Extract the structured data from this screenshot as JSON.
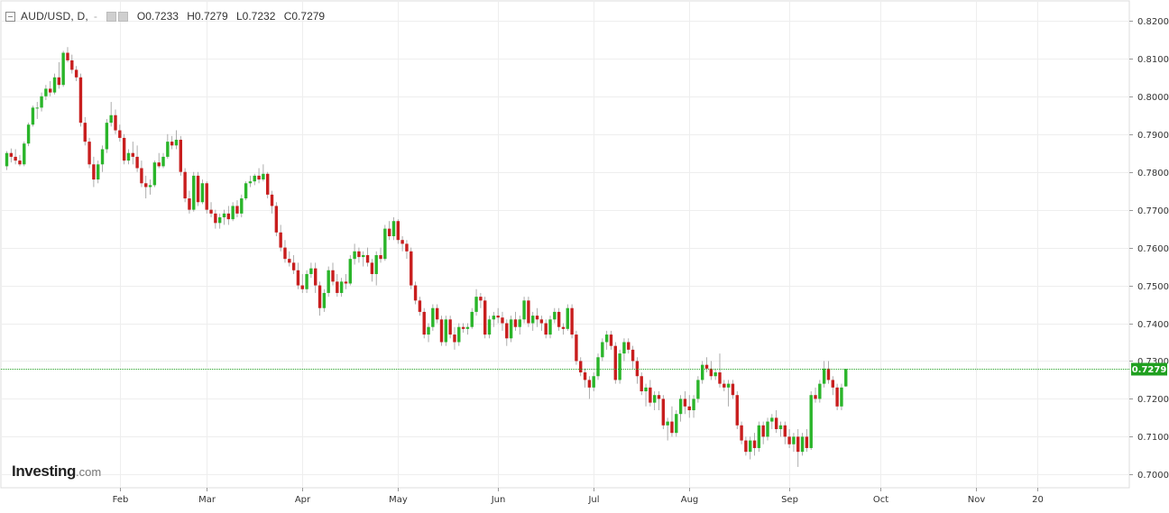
{
  "header": {
    "symbol": "AUD/USD, D,",
    "dash": "-",
    "open": "O0.7233",
    "high": "H0.7279",
    "low": "L0.7232",
    "close": "C0.7279"
  },
  "logo": {
    "main": "Investing",
    "suffix": ".com"
  },
  "colors": {
    "up": "#2ab52a",
    "down": "#c81e1e",
    "wick": "#999999",
    "grid": "#eeeeee",
    "current": "#20a020"
  },
  "chart_data": {
    "type": "candlestick",
    "ylim": [
      0.6965,
      0.8245
    ],
    "y_ticks": [
      "0.8200",
      "0.8100",
      "0.8000",
      "0.7900",
      "0.7800",
      "0.7700",
      "0.7600",
      "0.7500",
      "0.7400",
      "0.7300",
      "0.7200",
      "0.7100",
      "0.7000"
    ],
    "x_ticks": [
      {
        "label": "Feb",
        "day": 26
      },
      {
        "label": "Mar",
        "day": 46
      },
      {
        "label": "Apr",
        "day": 68
      },
      {
        "label": "May",
        "day": 90
      },
      {
        "label": "Jun",
        "day": 113
      },
      {
        "label": "Jul",
        "day": 135
      },
      {
        "label": "Aug",
        "day": 157
      },
      {
        "label": "Sep",
        "day": 180
      },
      {
        "label": "Oct",
        "day": 201
      },
      {
        "label": "Nov",
        "day": 223
      },
      {
        "label": "20",
        "day": 237
      }
    ],
    "current_price": "0.7279",
    "grid": true,
    "candles": [
      [
        0.7815,
        0.7855,
        0.7805,
        0.785
      ],
      [
        0.785,
        0.7862,
        0.7825,
        0.784
      ],
      [
        0.784,
        0.786,
        0.782,
        0.783
      ],
      [
        0.783,
        0.7845,
        0.7815,
        0.782
      ],
      [
        0.782,
        0.788,
        0.7815,
        0.7875
      ],
      [
        0.7875,
        0.793,
        0.7868,
        0.7925
      ],
      [
        0.7925,
        0.7975,
        0.792,
        0.797
      ],
      [
        0.797,
        0.7985,
        0.794,
        0.797
      ],
      [
        0.797,
        0.801,
        0.796,
        0.8
      ],
      [
        0.8,
        0.803,
        0.799,
        0.802
      ],
      [
        0.802,
        0.804,
        0.8,
        0.801
      ],
      [
        0.801,
        0.806,
        0.8005,
        0.805
      ],
      [
        0.805,
        0.809,
        0.802,
        0.803
      ],
      [
        0.803,
        0.812,
        0.8025,
        0.8115
      ],
      [
        0.8115,
        0.813,
        0.809,
        0.8095
      ],
      [
        0.8095,
        0.811,
        0.806,
        0.807
      ],
      [
        0.807,
        0.808,
        0.804,
        0.805
      ],
      [
        0.805,
        0.806,
        0.792,
        0.793
      ],
      [
        0.793,
        0.7945,
        0.787,
        0.788
      ],
      [
        0.788,
        0.789,
        0.781,
        0.782
      ],
      [
        0.782,
        0.784,
        0.776,
        0.778
      ],
      [
        0.778,
        0.783,
        0.777,
        0.782
      ],
      [
        0.782,
        0.787,
        0.78,
        0.786
      ],
      [
        0.786,
        0.794,
        0.785,
        0.793
      ],
      [
        0.793,
        0.7985,
        0.792,
        0.795
      ],
      [
        0.795,
        0.7965,
        0.79,
        0.791
      ],
      [
        0.791,
        0.7925,
        0.788,
        0.789
      ],
      [
        0.789,
        0.79,
        0.782,
        0.783
      ],
      [
        0.783,
        0.786,
        0.782,
        0.785
      ],
      [
        0.785,
        0.788,
        0.782,
        0.784
      ],
      [
        0.784,
        0.787,
        0.78,
        0.781
      ],
      [
        0.781,
        0.783,
        0.776,
        0.777
      ],
      [
        0.777,
        0.779,
        0.773,
        0.776
      ],
      [
        0.776,
        0.778,
        0.774,
        0.7765
      ],
      [
        0.7765,
        0.783,
        0.776,
        0.7825
      ],
      [
        0.7825,
        0.785,
        0.781,
        0.7815
      ],
      [
        0.7815,
        0.785,
        0.781,
        0.784
      ],
      [
        0.784,
        0.79,
        0.7835,
        0.788
      ],
      [
        0.788,
        0.7895,
        0.786,
        0.787
      ],
      [
        0.787,
        0.791,
        0.786,
        0.7885
      ],
      [
        0.7885,
        0.7895,
        0.779,
        0.78
      ],
      [
        0.78,
        0.781,
        0.772,
        0.773
      ],
      [
        0.773,
        0.775,
        0.769,
        0.77
      ],
      [
        0.77,
        0.78,
        0.7695,
        0.779
      ],
      [
        0.779,
        0.78,
        0.771,
        0.772
      ],
      [
        0.772,
        0.778,
        0.7715,
        0.777
      ],
      [
        0.777,
        0.7775,
        0.769,
        0.77
      ],
      [
        0.77,
        0.772,
        0.768,
        0.769
      ],
      [
        0.769,
        0.77,
        0.765,
        0.7665
      ],
      [
        0.7665,
        0.769,
        0.765,
        0.768
      ],
      [
        0.768,
        0.77,
        0.766,
        0.769
      ],
      [
        0.769,
        0.771,
        0.766,
        0.7675
      ],
      [
        0.7675,
        0.772,
        0.767,
        0.771
      ],
      [
        0.771,
        0.7725,
        0.768,
        0.769
      ],
      [
        0.769,
        0.774,
        0.768,
        0.773
      ],
      [
        0.773,
        0.7775,
        0.7725,
        0.777
      ],
      [
        0.777,
        0.779,
        0.776,
        0.7775
      ],
      [
        0.7775,
        0.7795,
        0.7765,
        0.779
      ],
      [
        0.779,
        0.781,
        0.777,
        0.778
      ],
      [
        0.778,
        0.782,
        0.7775,
        0.7795
      ],
      [
        0.7795,
        0.78,
        0.773,
        0.774
      ],
      [
        0.774,
        0.775,
        0.769,
        0.771
      ],
      [
        0.771,
        0.772,
        0.763,
        0.764
      ],
      [
        0.764,
        0.766,
        0.759,
        0.76
      ],
      [
        0.76,
        0.762,
        0.756,
        0.757
      ],
      [
        0.757,
        0.759,
        0.755,
        0.756
      ],
      [
        0.756,
        0.758,
        0.753,
        0.754
      ],
      [
        0.754,
        0.756,
        0.749,
        0.75
      ],
      [
        0.75,
        0.753,
        0.748,
        0.749
      ],
      [
        0.749,
        0.754,
        0.748,
        0.753
      ],
      [
        0.753,
        0.756,
        0.752,
        0.7545
      ],
      [
        0.7545,
        0.756,
        0.748,
        0.75
      ],
      [
        0.75,
        0.751,
        0.742,
        0.744
      ],
      [
        0.744,
        0.749,
        0.743,
        0.748
      ],
      [
        0.748,
        0.755,
        0.747,
        0.754
      ],
      [
        0.754,
        0.756,
        0.75,
        0.751
      ],
      [
        0.751,
        0.753,
        0.747,
        0.748
      ],
      [
        0.748,
        0.752,
        0.747,
        0.751
      ],
      [
        0.751,
        0.753,
        0.749,
        0.7505
      ],
      [
        0.7505,
        0.758,
        0.75,
        0.757
      ],
      [
        0.757,
        0.761,
        0.7555,
        0.759
      ],
      [
        0.759,
        0.76,
        0.756,
        0.7575
      ],
      [
        0.7575,
        0.759,
        0.755,
        0.758
      ],
      [
        0.758,
        0.76,
        0.755,
        0.756
      ],
      [
        0.756,
        0.757,
        0.751,
        0.753
      ],
      [
        0.753,
        0.759,
        0.75,
        0.758
      ],
      [
        0.758,
        0.76,
        0.756,
        0.757
      ],
      [
        0.757,
        0.766,
        0.7565,
        0.765
      ],
      [
        0.765,
        0.767,
        0.762,
        0.763
      ],
      [
        0.763,
        0.768,
        0.762,
        0.767
      ],
      [
        0.767,
        0.7675,
        0.761,
        0.762
      ],
      [
        0.762,
        0.763,
        0.759,
        0.761
      ],
      [
        0.761,
        0.762,
        0.757,
        0.759
      ],
      [
        0.759,
        0.76,
        0.749,
        0.75
      ],
      [
        0.75,
        0.751,
        0.745,
        0.746
      ],
      [
        0.746,
        0.747,
        0.742,
        0.743
      ],
      [
        0.743,
        0.744,
        0.736,
        0.737
      ],
      [
        0.737,
        0.74,
        0.735,
        0.739
      ],
      [
        0.739,
        0.745,
        0.738,
        0.744
      ],
      [
        0.744,
        0.745,
        0.74,
        0.741
      ],
      [
        0.741,
        0.742,
        0.734,
        0.735
      ],
      [
        0.735,
        0.742,
        0.734,
        0.741
      ],
      [
        0.741,
        0.742,
        0.736,
        0.737
      ],
      [
        0.737,
        0.739,
        0.733,
        0.735
      ],
      [
        0.735,
        0.74,
        0.734,
        0.739
      ],
      [
        0.739,
        0.74,
        0.7375,
        0.7385
      ],
      [
        0.7385,
        0.74,
        0.737,
        0.739
      ],
      [
        0.739,
        0.744,
        0.7385,
        0.743
      ],
      [
        0.743,
        0.749,
        0.742,
        0.747
      ],
      [
        0.747,
        0.748,
        0.744,
        0.746
      ],
      [
        0.746,
        0.747,
        0.736,
        0.737
      ],
      [
        0.737,
        0.742,
        0.736,
        0.741
      ],
      [
        0.741,
        0.743,
        0.739,
        0.742
      ],
      [
        0.742,
        0.744,
        0.74,
        0.7415
      ],
      [
        0.7415,
        0.743,
        0.738,
        0.74
      ],
      [
        0.74,
        0.741,
        0.734,
        0.736
      ],
      [
        0.736,
        0.742,
        0.735,
        0.741
      ],
      [
        0.741,
        0.743,
        0.738,
        0.739
      ],
      [
        0.739,
        0.742,
        0.737,
        0.741
      ],
      [
        0.741,
        0.747,
        0.74,
        0.746
      ],
      [
        0.746,
        0.747,
        0.739,
        0.74
      ],
      [
        0.74,
        0.743,
        0.738,
        0.742
      ],
      [
        0.742,
        0.744,
        0.739,
        0.741
      ],
      [
        0.741,
        0.742,
        0.738,
        0.74
      ],
      [
        0.74,
        0.741,
        0.736,
        0.737
      ],
      [
        0.737,
        0.742,
        0.736,
        0.741
      ],
      [
        0.741,
        0.744,
        0.74,
        0.743
      ],
      [
        0.743,
        0.744,
        0.738,
        0.739
      ],
      [
        0.739,
        0.74,
        0.737,
        0.7385
      ],
      [
        0.7385,
        0.745,
        0.738,
        0.744
      ],
      [
        0.744,
        0.745,
        0.736,
        0.737
      ],
      [
        0.737,
        0.738,
        0.729,
        0.73
      ],
      [
        0.73,
        0.731,
        0.726,
        0.727
      ],
      [
        0.727,
        0.728,
        0.723,
        0.725
      ],
      [
        0.725,
        0.726,
        0.72,
        0.723
      ],
      [
        0.723,
        0.727,
        0.722,
        0.726
      ],
      [
        0.726,
        0.732,
        0.725,
        0.731
      ],
      [
        0.731,
        0.736,
        0.73,
        0.735
      ],
      [
        0.735,
        0.738,
        0.733,
        0.737
      ],
      [
        0.737,
        0.738,
        0.733,
        0.734
      ],
      [
        0.734,
        0.735,
        0.724,
        0.725
      ],
      [
        0.725,
        0.733,
        0.724,
        0.732
      ],
      [
        0.732,
        0.736,
        0.73,
        0.735
      ],
      [
        0.735,
        0.736,
        0.732,
        0.733
      ],
      [
        0.733,
        0.734,
        0.728,
        0.73
      ],
      [
        0.73,
        0.731,
        0.724,
        0.726
      ],
      [
        0.726,
        0.727,
        0.721,
        0.722
      ],
      [
        0.722,
        0.724,
        0.718,
        0.723
      ],
      [
        0.723,
        0.725,
        0.718,
        0.719
      ],
      [
        0.719,
        0.722,
        0.717,
        0.721
      ],
      [
        0.721,
        0.722,
        0.717,
        0.72
      ],
      [
        0.72,
        0.721,
        0.712,
        0.713
      ],
      [
        0.713,
        0.715,
        0.709,
        0.714
      ],
      [
        0.714,
        0.718,
        0.71,
        0.711
      ],
      [
        0.711,
        0.717,
        0.71,
        0.716
      ],
      [
        0.716,
        0.721,
        0.714,
        0.72
      ],
      [
        0.72,
        0.722,
        0.716,
        0.718
      ],
      [
        0.718,
        0.721,
        0.715,
        0.717
      ],
      [
        0.717,
        0.721,
        0.715,
        0.72
      ],
      [
        0.72,
        0.726,
        0.719,
        0.725
      ],
      [
        0.725,
        0.73,
        0.724,
        0.729
      ],
      [
        0.729,
        0.731,
        0.727,
        0.728
      ],
      [
        0.728,
        0.73,
        0.725,
        0.726
      ],
      [
        0.726,
        0.728,
        0.725,
        0.727
      ],
      [
        0.727,
        0.732,
        0.723,
        0.724
      ],
      [
        0.724,
        0.725,
        0.722,
        0.723
      ],
      [
        0.723,
        0.725,
        0.718,
        0.724
      ],
      [
        0.724,
        0.725,
        0.72,
        0.721
      ],
      [
        0.721,
        0.722,
        0.712,
        0.713
      ],
      [
        0.713,
        0.714,
        0.708,
        0.709
      ],
      [
        0.709,
        0.71,
        0.705,
        0.706
      ],
      [
        0.706,
        0.71,
        0.704,
        0.709
      ],
      [
        0.709,
        0.711,
        0.705,
        0.707
      ],
      [
        0.707,
        0.714,
        0.706,
        0.713
      ],
      [
        0.713,
        0.714,
        0.708,
        0.71
      ],
      [
        0.71,
        0.715,
        0.709,
        0.714
      ],
      [
        0.714,
        0.716,
        0.712,
        0.715
      ],
      [
        0.715,
        0.717,
        0.711,
        0.712
      ],
      [
        0.712,
        0.714,
        0.71,
        0.713
      ],
      [
        0.713,
        0.714,
        0.708,
        0.71
      ],
      [
        0.71,
        0.712,
        0.707,
        0.708
      ],
      [
        0.708,
        0.711,
        0.706,
        0.71
      ],
      [
        0.71,
        0.712,
        0.702,
        0.706
      ],
      [
        0.706,
        0.711,
        0.705,
        0.71
      ],
      [
        0.71,
        0.712,
        0.706,
        0.707
      ],
      [
        0.707,
        0.722,
        0.7065,
        0.721
      ],
      [
        0.721,
        0.723,
        0.719,
        0.72
      ],
      [
        0.72,
        0.725,
        0.719,
        0.724
      ],
      [
        0.724,
        0.73,
        0.723,
        0.728
      ],
      [
        0.728,
        0.73,
        0.724,
        0.725
      ],
      [
        0.725,
        0.726,
        0.721,
        0.723
      ],
      [
        0.723,
        0.724,
        0.717,
        0.718
      ],
      [
        0.718,
        0.724,
        0.717,
        0.723
      ],
      [
        0.7233,
        0.7279,
        0.7232,
        0.7279
      ]
    ]
  }
}
